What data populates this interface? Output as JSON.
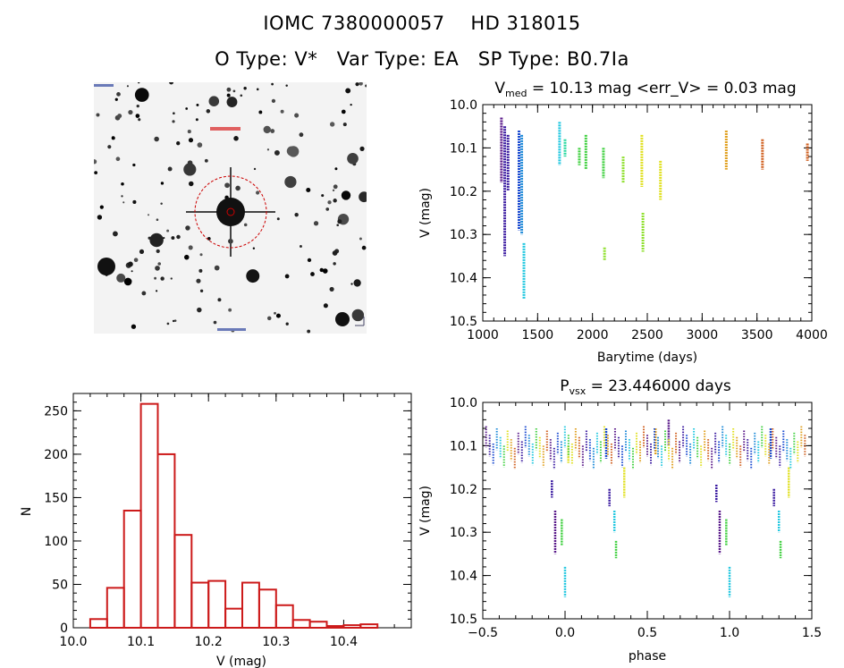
{
  "header": {
    "title_line1": "IOMC 7380000057    HD 318015",
    "title_line2": "O Type: V*   Var Type: EA   SP Type: B0.7Ia"
  },
  "colors": {
    "hist_bar": "#cc1a1a",
    "circle": "#cc0000",
    "series": [
      "#5a1a8a",
      "#3a1aa0",
      "#1a4ad0",
      "#1e8ad8",
      "#24c8e0",
      "#28d8a0",
      "#40d040",
      "#90e030",
      "#e0e020",
      "#e0a020",
      "#d06020"
    ]
  },
  "image_panel": {
    "alt": "DSS finder chart",
    "marker": "HD 318015"
  },
  "chart_data": [
    {
      "type": "scatter",
      "id": "lightcurve",
      "title": "V_med = 10.13 mag <err_V> = 0.03 mag",
      "title_main": "V",
      "title_sub": "med",
      "title_rest": " = 10.13 mag <err_V> = 0.03 mag",
      "xlabel": "Barytime (days)",
      "ylabel": "V (mag)",
      "xlim": [
        1000,
        4000
      ],
      "ylim": [
        10.0,
        10.5
      ],
      "y_inverted": true,
      "xticks": [
        1000,
        1500,
        2000,
        2500,
        3000,
        3500,
        4000
      ],
      "yticks": [
        10.0,
        10.1,
        10.2,
        10.3,
        10.4,
        10.5
      ],
      "xtick_labels": [
        "1000",
        "1500",
        "2000",
        "2500",
        "3000",
        "3500",
        "4000"
      ],
      "ytick_labels": [
        "10.0",
        "10.1",
        "10.2",
        "10.3",
        "10.4",
        "10.5"
      ],
      "segments": [
        {
          "x": 1170,
          "ymin": 10.03,
          "ymax": 10.18,
          "color_index": 0
        },
        {
          "x": 1200,
          "ymin": 10.05,
          "ymax": 10.35,
          "color_index": 1
        },
        {
          "x": 1230,
          "ymin": 10.07,
          "ymax": 10.2,
          "color_index": 1
        },
        {
          "x": 1330,
          "ymin": 10.06,
          "ymax": 10.29,
          "color_index": 2
        },
        {
          "x": 1355,
          "ymin": 10.07,
          "ymax": 10.3,
          "color_index": 3
        },
        {
          "x": 1375,
          "ymin": 10.32,
          "ymax": 10.45,
          "color_index": 4
        },
        {
          "x": 1700,
          "ymin": 10.04,
          "ymax": 10.14,
          "color_index": 4
        },
        {
          "x": 1750,
          "ymin": 10.08,
          "ymax": 10.12,
          "color_index": 5
        },
        {
          "x": 1880,
          "ymin": 10.1,
          "ymax": 10.14,
          "color_index": 6
        },
        {
          "x": 1940,
          "ymin": 10.07,
          "ymax": 10.15,
          "color_index": 6
        },
        {
          "x": 2100,
          "ymin": 10.1,
          "ymax": 10.17,
          "color_index": 6
        },
        {
          "x": 2110,
          "ymin": 10.33,
          "ymax": 10.36,
          "color_index": 7
        },
        {
          "x": 2280,
          "ymin": 10.12,
          "ymax": 10.18,
          "color_index": 7
        },
        {
          "x": 2450,
          "ymin": 10.07,
          "ymax": 10.19,
          "color_index": 8
        },
        {
          "x": 2460,
          "ymin": 10.25,
          "ymax": 10.34,
          "color_index": 7
        },
        {
          "x": 2620,
          "ymin": 10.13,
          "ymax": 10.22,
          "color_index": 8
        },
        {
          "x": 3220,
          "ymin": 10.06,
          "ymax": 10.15,
          "color_index": 9
        },
        {
          "x": 3550,
          "ymin": 10.08,
          "ymax": 10.15,
          "color_index": 10
        },
        {
          "x": 3960,
          "ymin": 10.09,
          "ymax": 10.13,
          "color_index": 10
        }
      ]
    },
    {
      "type": "bar",
      "id": "histogram",
      "xlabel": "V (mag)",
      "ylabel": "N",
      "xlim": [
        10.0,
        10.5
      ],
      "ylim": [
        0,
        270
      ],
      "xticks": [
        10.0,
        10.1,
        10.2,
        10.3,
        10.4
      ],
      "yticks": [
        0,
        50,
        100,
        150,
        200,
        250
      ],
      "xtick_labels": [
        "10.0",
        "10.1",
        "10.2",
        "10.3",
        "10.4"
      ],
      "ytick_labels": [
        "0",
        "50",
        "100",
        "150",
        "200",
        "250"
      ],
      "bin_width": 0.025,
      "bin_start": 10.025,
      "values": [
        10,
        46,
        135,
        258,
        200,
        107,
        52,
        54,
        22,
        52,
        44,
        26,
        9,
        7,
        2,
        3,
        4
      ]
    },
    {
      "type": "scatter",
      "id": "phased",
      "title": "P_vsx = 23.446000 days",
      "title_main": "P",
      "title_sub": "vsx",
      "title_rest": " = 23.446000 days",
      "xlabel": "phase",
      "ylabel": "V (mag)",
      "xlim": [
        -0.5,
        1.5
      ],
      "ylim": [
        10.0,
        10.5
      ],
      "y_inverted": true,
      "xticks": [
        -0.5,
        0.0,
        0.5,
        1.0,
        1.5
      ],
      "yticks": [
        10.0,
        10.1,
        10.2,
        10.3,
        10.4,
        10.5
      ],
      "xtick_labels": [
        "−0.5",
        "0.0",
        "0.5",
        "1.0",
        "1.5"
      ],
      "ytick_labels": [
        "10.0",
        "10.1",
        "10.2",
        "10.3",
        "10.4",
        "10.5"
      ],
      "segments": [
        {
          "x": -0.08,
          "ymin": 10.18,
          "ymax": 10.22,
          "color_index": 1
        },
        {
          "x": -0.06,
          "ymin": 10.25,
          "ymax": 10.35,
          "color_index": 0
        },
        {
          "x": -0.02,
          "ymin": 10.27,
          "ymax": 10.33,
          "color_index": 6
        },
        {
          "x": 0.0,
          "ymin": 10.38,
          "ymax": 10.45,
          "color_index": 4
        },
        {
          "x": 0.02,
          "ymin": 10.1,
          "ymax": 10.14,
          "color_index": 8
        },
        {
          "x": 0.25,
          "ymin": 10.06,
          "ymax": 10.13,
          "color_index": 2
        },
        {
          "x": 0.27,
          "ymin": 10.2,
          "ymax": 10.24,
          "color_index": 1
        },
        {
          "x": 0.3,
          "ymin": 10.25,
          "ymax": 10.3,
          "color_index": 4
        },
        {
          "x": 0.31,
          "ymin": 10.32,
          "ymax": 10.36,
          "color_index": 6
        },
        {
          "x": 0.36,
          "ymin": 10.15,
          "ymax": 10.22,
          "color_index": 8
        },
        {
          "x": 0.55,
          "ymin": 10.06,
          "ymax": 10.12,
          "color_index": 9
        },
        {
          "x": 0.63,
          "ymin": 10.04,
          "ymax": 10.1,
          "color_index": 0
        },
        {
          "x": 0.92,
          "ymin": 10.19,
          "ymax": 10.23,
          "color_index": 1
        },
        {
          "x": 0.94,
          "ymin": 10.25,
          "ymax": 10.35,
          "color_index": 0
        },
        {
          "x": 0.98,
          "ymin": 10.27,
          "ymax": 10.33,
          "color_index": 6
        },
        {
          "x": 1.0,
          "ymin": 10.38,
          "ymax": 10.45,
          "color_index": 4
        },
        {
          "x": 1.25,
          "ymin": 10.06,
          "ymax": 10.13,
          "color_index": 2
        },
        {
          "x": 1.27,
          "ymin": 10.2,
          "ymax": 10.24,
          "color_index": 1
        },
        {
          "x": 1.3,
          "ymin": 10.25,
          "ymax": 10.3,
          "color_index": 4
        },
        {
          "x": 1.31,
          "ymin": 10.32,
          "ymax": 10.36,
          "color_index": 6
        },
        {
          "x": 1.36,
          "ymin": 10.15,
          "ymax": 10.22,
          "color_index": 8
        }
      ]
    }
  ]
}
